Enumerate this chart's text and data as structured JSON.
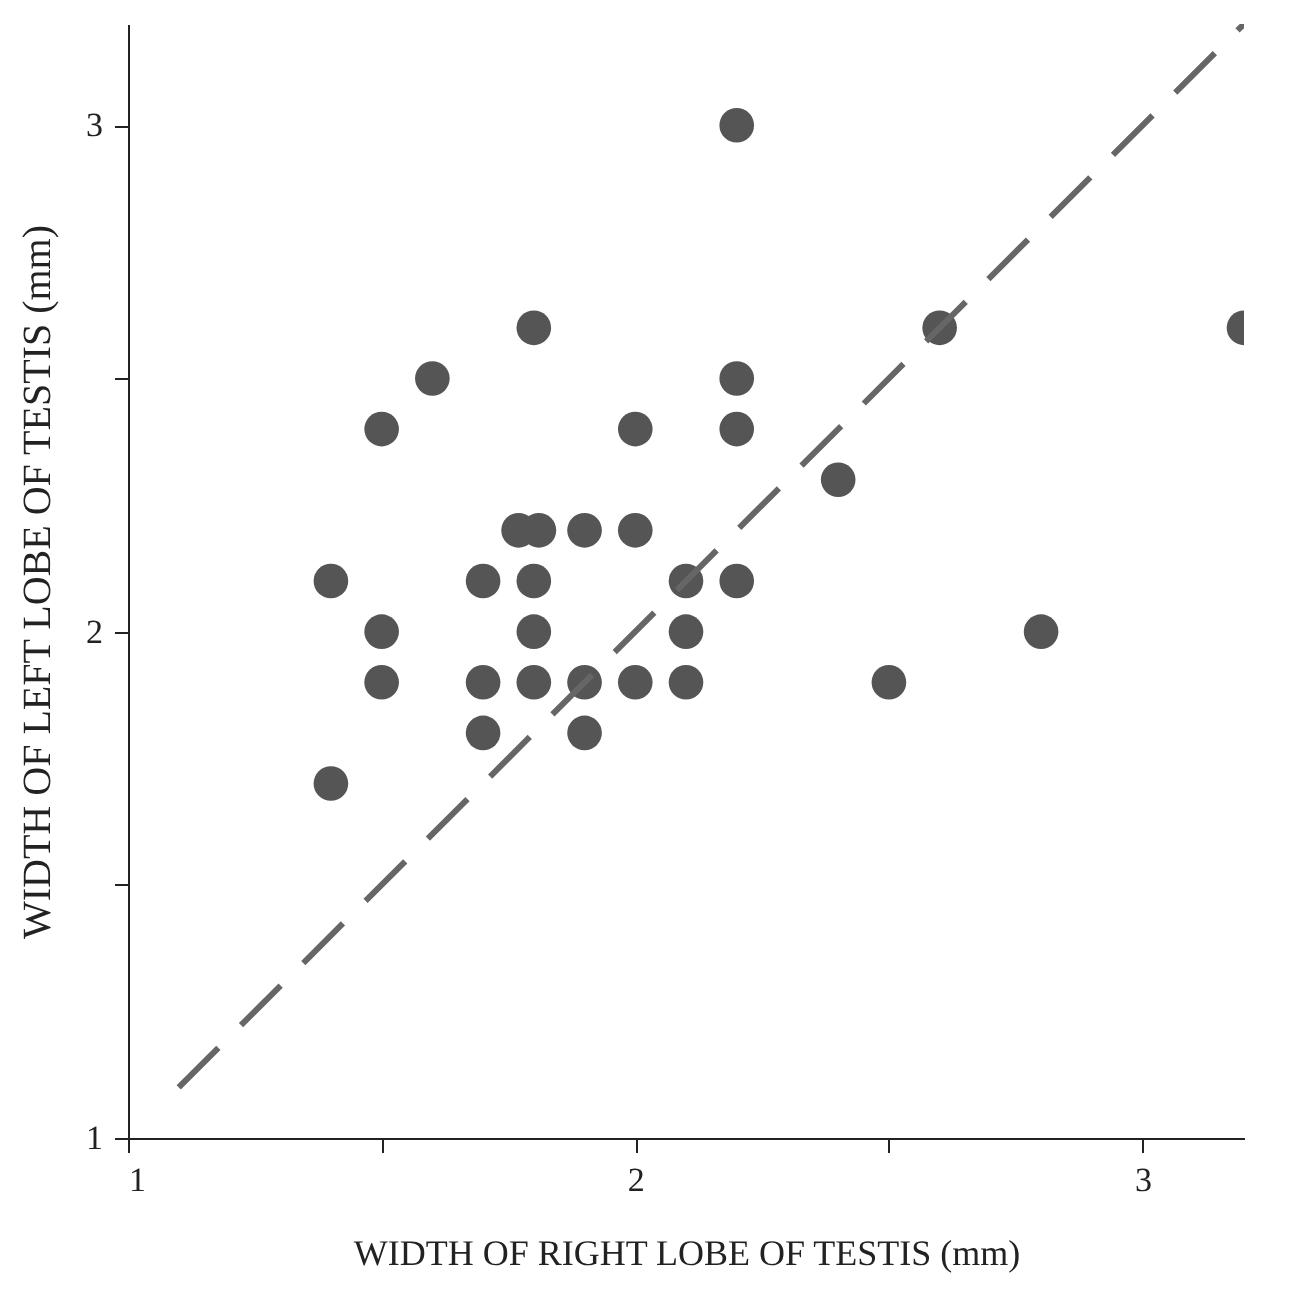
{
  "chart_data": {
    "type": "scatter",
    "xlabel": "WIDTH OF RIGHT LOBE OF TESTIS (mm)",
    "ylabel": "WIDTH OF LEFT LOBE OF TESTIS (mm)",
    "xlim": [
      1,
      3.2
    ],
    "ylim": [
      1,
      3.2
    ],
    "xticks": [
      1,
      {
        "value": 1.5,
        "label": null
      },
      2,
      {
        "value": 2.5,
        "label": null
      },
      3
    ],
    "yticks": [
      1,
      {
        "value": 1.5,
        "label": null
      },
      2,
      {
        "value": 2.5,
        "label": null
      },
      3
    ],
    "grid": false,
    "marker": "circle",
    "series": [
      {
        "color": "#555555",
        "x": [
          1.4,
          1.4,
          1.5,
          1.5,
          1.5,
          1.6,
          1.7,
          1.7,
          1.7,
          1.77,
          1.81,
          1.8,
          1.8,
          1.8,
          1.8,
          1.9,
          1.9,
          1.9,
          2.0,
          2.0,
          2.0,
          2.1,
          2.1,
          2.1,
          2.2,
          2.2,
          2.2,
          2.2,
          2.4,
          2.5,
          2.6,
          2.8,
          3.2
        ],
        "values": [
          2.1,
          1.7,
          2.4,
          2.0,
          1.9,
          2.5,
          2.1,
          1.9,
          1.8,
          2.2,
          2.2,
          2.6,
          2.1,
          2.0,
          1.9,
          2.2,
          1.9,
          1.8,
          2.2,
          2.4,
          1.9,
          2.1,
          2.0,
          1.9,
          3.0,
          2.5,
          2.4,
          2.1,
          2.3,
          1.9,
          2.6,
          2.0,
          2.6
        ]
      },
      {
        "type": "line",
        "color": "#666666",
        "line_style": "dashed",
        "marker": "none",
        "x": [
          1.1,
          3.2
        ],
        "values": [
          1.1,
          3.2
        ]
      }
    ]
  }
}
